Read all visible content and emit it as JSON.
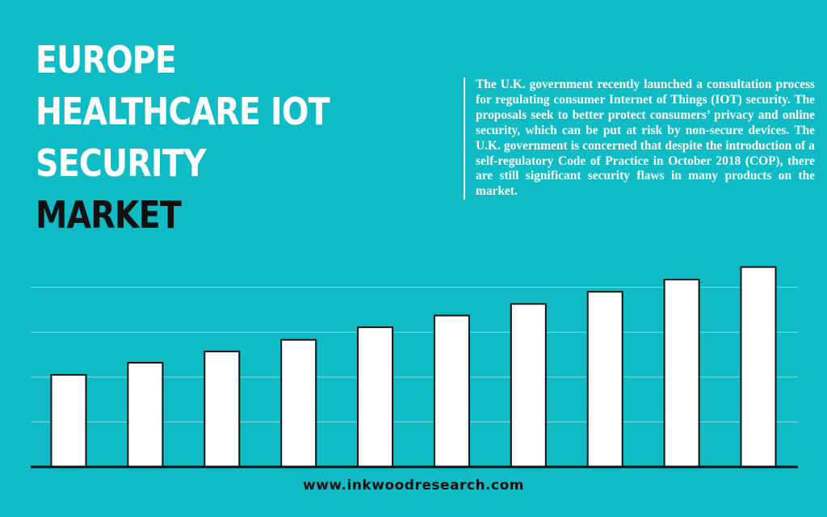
{
  "colors": {
    "background": "#0fbcc6",
    "title_white": "#ffffff",
    "title_dark": "#111111",
    "text_white": "#ffffff",
    "bar_fill": "#ffffff",
    "bar_stroke": "#111111",
    "gridline": "#7fdde2",
    "baseline": "#111111",
    "footer_text": "#111111"
  },
  "title": {
    "line1": "EUROPE",
    "line2": "HEALTHCARE IOT",
    "line3": "SECURITY",
    "line4": "MARKET"
  },
  "description": "The U.K. government recently launched a consultation process for regulating consumer Internet of Things (IOT) security. The proposals seek to better protect consumers’ privacy and online security, which can be put at risk by non-secure devices. The U.K. government is concerned that despite the introduction of a self-regulatory Code of Practice in October 2018 (COP), there are still significant security flaws in many products on the market.",
  "footer": {
    "url": "www.inkwoodresearch.com"
  },
  "chart_data": {
    "type": "bar",
    "title": "",
    "xlabel": "",
    "ylabel": "",
    "categories": [
      "",
      "",
      "",
      "",
      "",
      "",
      "",
      "",
      "",
      ""
    ],
    "values": [
      20.5,
      23.2,
      25.7,
      28.3,
      31.1,
      33.7,
      36.3,
      39.0,
      41.7,
      44.5
    ],
    "ylim": [
      0,
      50
    ],
    "grid": true,
    "gridlines": [
      10,
      20,
      30,
      40
    ],
    "axis_labels_visible": false,
    "legend": "none"
  }
}
